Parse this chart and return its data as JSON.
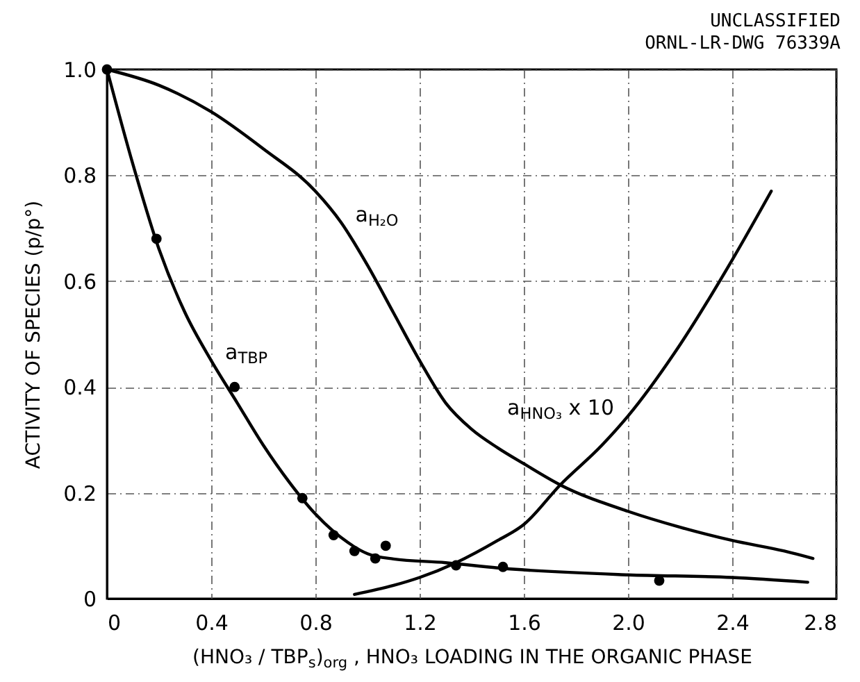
{
  "chart_data": {
    "type": "line",
    "xlabel": "(HNO₃ / TBP$_{s}$)$_{org}$ , HNO₃ LOADING IN THE ORGANIC PHASE",
    "ylabel": "ACTIVITY OF SPECIES (p/p°)",
    "annotations": [
      "UNCLASSIFIED",
      "ORNL-LR-DWG 76339A"
    ],
    "xlim": [
      0,
      2.8
    ],
    "xticks": [
      0,
      0.4,
      0.8,
      1.2,
      1.6,
      {
        "value": 2,
        "label": "2.0"
      },
      2.4,
      2.8
    ],
    "ylim": [
      0,
      1
    ],
    "yticks": [
      0,
      0.2,
      0.4,
      0.6,
      0.8,
      {
        "value": 1,
        "label": "1.0"
      }
    ],
    "grid": true,
    "marker": "none",
    "line_style": "solid",
    "series": [
      {
        "name": "a$_{TBP}$",
        "color": "#000000",
        "x": [
          0,
          0.1,
          0.2,
          0.3,
          0.4,
          0.5,
          0.6,
          0.7,
          0.8,
          0.9,
          1.0,
          1.1,
          1.3,
          1.5,
          2.0,
          2.4,
          2.69
        ],
        "values": [
          1,
          0.82,
          0.66,
          0.54,
          0.45,
          0.37,
          0.29,
          0.22,
          0.16,
          0.115,
          0.085,
          0.075,
          0.068,
          0.058,
          0.045,
          0.04,
          0.031
        ]
      },
      {
        "name": "a$_{H₂O}$",
        "color": "#000000",
        "x": [
          0,
          0.2,
          0.4,
          0.6,
          0.8,
          0.9,
          1.0,
          1.1,
          1.2,
          1.3,
          1.4,
          1.5,
          1.6,
          1.74,
          2.0,
          2.2,
          2.4,
          2.6,
          2.71
        ],
        "values": [
          1,
          0.97,
          0.92,
          0.85,
          0.77,
          0.71,
          0.63,
          0.54,
          0.45,
          0.37,
          0.32,
          0.285,
          0.255,
          0.215,
          0.165,
          0.135,
          0.11,
          0.09,
          0.076
        ]
      },
      {
        "name": "a$_{HNO₃}$ x 10",
        "color": "#000000",
        "x": [
          0.95,
          1.1,
          1.2,
          1.34,
          1.5,
          1.6,
          1.74,
          1.9,
          2.0,
          2.2,
          2.4,
          2.55
        ],
        "values": [
          0.008,
          0.025,
          0.04,
          0.068,
          0.11,
          0.14,
          0.215,
          0.29,
          0.345,
          0.48,
          0.64,
          0.77
        ]
      },
      {
        "type": "scatter",
        "marker": "circle",
        "color": "#000000",
        "x": [
          0,
          0.19,
          0.49,
          0.75,
          0.87,
          0.95,
          1.03,
          1.07,
          1.34,
          1.52,
          2.12
        ],
        "values": [
          1,
          0.68,
          0.4,
          0.19,
          0.12,
          0.09,
          0.076,
          0.1,
          0.063,
          0.06,
          0.034
        ]
      }
    ]
  }
}
